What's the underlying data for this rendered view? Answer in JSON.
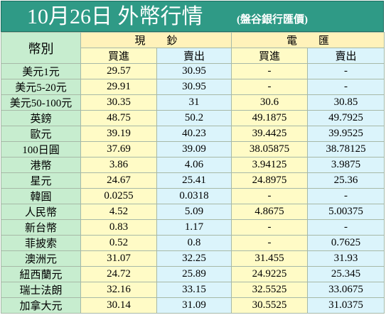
{
  "title": {
    "main": "10月26日 外幣行情",
    "sub": "(盤谷銀行匯價)"
  },
  "header": {
    "currency": "幣別",
    "cash": "現　　鈔",
    "telegraphic": "電　　匯",
    "buy": "買進",
    "sell": "賣出"
  },
  "rows": [
    {
      "name": "美元1元",
      "cash_buy": "29.57",
      "cash_sell": "30.95",
      "tt_buy": "-",
      "tt_sell": "-"
    },
    {
      "name": "美元5-20元",
      "cash_buy": "29.91",
      "cash_sell": "30.95",
      "tt_buy": "-",
      "tt_sell": "-"
    },
    {
      "name": "美元50-100元",
      "cash_buy": "30.35",
      "cash_sell": "31",
      "tt_buy": "30.6",
      "tt_sell": "30.85"
    },
    {
      "name": "英鎊",
      "cash_buy": "48.75",
      "cash_sell": "50.2",
      "tt_buy": "49.1875",
      "tt_sell": "49.7925"
    },
    {
      "name": "歐元",
      "cash_buy": "39.19",
      "cash_sell": "40.23",
      "tt_buy": "39.4425",
      "tt_sell": "39.9525"
    },
    {
      "name": "100日圓",
      "cash_buy": "37.69",
      "cash_sell": "39.09",
      "tt_buy": "38.05875",
      "tt_sell": "38.78125"
    },
    {
      "name": "港幣",
      "cash_buy": "3.86",
      "cash_sell": "4.06",
      "tt_buy": "3.94125",
      "tt_sell": "3.9875"
    },
    {
      "name": "星元",
      "cash_buy": "24.67",
      "cash_sell": "25.41",
      "tt_buy": "24.8975",
      "tt_sell": "25.36"
    },
    {
      "name": "韓圓",
      "cash_buy": "0.0255",
      "cash_sell": "0.0318",
      "tt_buy": "-",
      "tt_sell": "-"
    },
    {
      "name": "人民幣",
      "cash_buy": "4.52",
      "cash_sell": "5.09",
      "tt_buy": "4.8675",
      "tt_sell": "5.00375"
    },
    {
      "name": "新台幣",
      "cash_buy": "0.83",
      "cash_sell": "1.17",
      "tt_buy": "-",
      "tt_sell": "-"
    },
    {
      "name": "菲披索",
      "cash_buy": "0.52",
      "cash_sell": "0.8",
      "tt_buy": "-",
      "tt_sell": "0.7625"
    },
    {
      "name": "澳洲元",
      "cash_buy": "31.07",
      "cash_sell": "32.25",
      "tt_buy": "31.455",
      "tt_sell": "31.93"
    },
    {
      "name": "紐西蘭元",
      "cash_buy": "24.72",
      "cash_sell": "25.89",
      "tt_buy": "24.9225",
      "tt_sell": "25.345"
    },
    {
      "name": "瑞士法朗",
      "cash_buy": "32.16",
      "cash_sell": "33.15",
      "tt_buy": "32.5525",
      "tt_sell": "33.0675"
    },
    {
      "name": "加拿大元",
      "cash_buy": "30.14",
      "cash_sell": "31.09",
      "tt_buy": "30.5525",
      "tt_sell": "31.0375"
    }
  ],
  "colors": {
    "title_bg": "#2f9a86",
    "label_bg": "#c7edcf",
    "buy_bg": "#fffbc6",
    "sell_bg": "#dbf4fb",
    "header_bg": "#fff2ba"
  }
}
